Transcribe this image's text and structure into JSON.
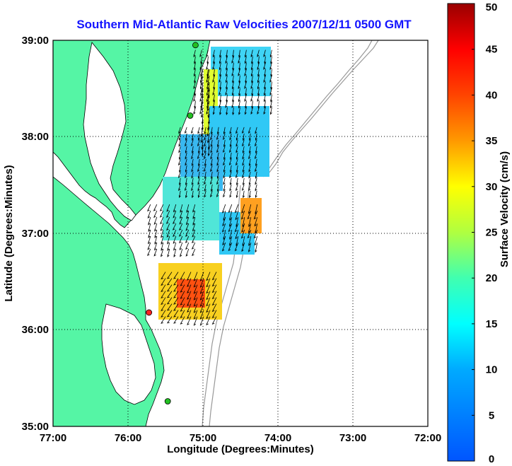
{
  "chart_data": {
    "type": "vector-field",
    "title": "Southern Mid-Atlantic Raw Velocities 2007/12/11 0500 GMT",
    "xlabel": "Longitude (Degrees:Minutes)",
    "ylabel": "Latitude (Degrees:Minutes)",
    "xlim": [
      -77,
      -72
    ],
    "ylim": [
      35,
      39
    ],
    "x_ticks": [
      "77:00",
      "76:00",
      "75:00",
      "74:00",
      "73:00",
      "72:00"
    ],
    "y_ticks": [
      "35:00",
      "36:00",
      "37:00",
      "38:00",
      "39:00"
    ],
    "grid": true,
    "colorbar": {
      "label": "Surface Velocity (cm/s)",
      "min": 0,
      "max": 50,
      "ticks": [
        "0",
        "5",
        "10",
        "15",
        "20",
        "25",
        "30",
        "35",
        "40",
        "45",
        "50"
      ]
    },
    "stations": [
      {
        "lon": -75.1,
        "lat": 38.95,
        "color": "#22c022"
      },
      {
        "lon": -75.17,
        "lat": 38.22,
        "color": "#22c022"
      },
      {
        "lon": -75.72,
        "lat": 36.18,
        "color": "#ff2020"
      },
      {
        "lon": -75.47,
        "lat": 35.26,
        "color": "#22c022"
      }
    ],
    "regions": [
      {
        "name": "north",
        "lon_range": [
          -75.1,
          -74.05
        ],
        "lat_range": [
          38.25,
          38.9
        ],
        "speed": 13
      },
      {
        "name": "north-coastal",
        "lon_range": [
          -75.0,
          -74.85
        ],
        "lat_range": [
          37.9,
          38.7
        ],
        "speed": 24
      },
      {
        "name": "central",
        "lon_range": [
          -75.3,
          -74.2
        ],
        "lat_range": [
          37.4,
          38.1
        ],
        "speed": 11
      },
      {
        "name": "mouth",
        "lon_range": [
          -75.7,
          -75.1
        ],
        "lat_range": [
          36.8,
          37.3
        ],
        "speed": 18
      },
      {
        "name": "east-jet",
        "lon_range": [
          -74.7,
          -74.2
        ],
        "lat_range": [
          36.9,
          37.3
        ],
        "speed": 24
      },
      {
        "name": "south",
        "lon_range": [
          -75.5,
          -74.8
        ],
        "lat_range": [
          36.1,
          36.6
        ],
        "speed": 27
      }
    ]
  }
}
